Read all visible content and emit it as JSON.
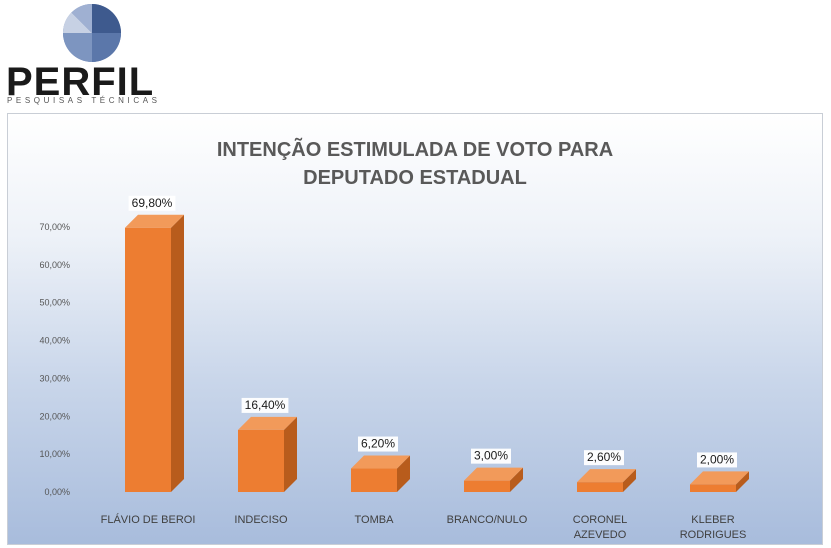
{
  "brand": {
    "name": "PERFIL",
    "tagline": "PESQUISAS TÉCNICAS"
  },
  "colors": {
    "bar_front": "#ed7d31",
    "bar_side": "#b85c1c",
    "bar_top": "#f29a5a",
    "label_bg": "#ffffff"
  },
  "chart_data": {
    "type": "bar",
    "title_lines": [
      "INTENÇÃO ESTIMULADA DE VOTO PARA",
      "DEPUTADO ESTADUAL"
    ],
    "categories": [
      [
        "FLÁVIO DE BEROI"
      ],
      [
        "INDECISO"
      ],
      [
        "TOMBA"
      ],
      [
        "BRANCO/NULO"
      ],
      [
        "CORONEL",
        "AZEVEDO"
      ],
      [
        "KLEBER",
        "RODRIGUES"
      ]
    ],
    "values": [
      69.8,
      16.4,
      6.2,
      3.0,
      2.6,
      2.0
    ],
    "value_labels": [
      "69,80%",
      "16,40%",
      "6,20%",
      "3,00%",
      "2,60%",
      "2,00%"
    ],
    "yticks": [
      0,
      10,
      20,
      30,
      40,
      50,
      60,
      70
    ],
    "ytick_labels": [
      "0,00%",
      "10,00%",
      "20,00%",
      "30,00%",
      "40,00%",
      "50,00%",
      "60,00%",
      "70,00%"
    ],
    "ylim": [
      0,
      70
    ],
    "grid": false,
    "legend": "none",
    "style": "3d-bar"
  }
}
